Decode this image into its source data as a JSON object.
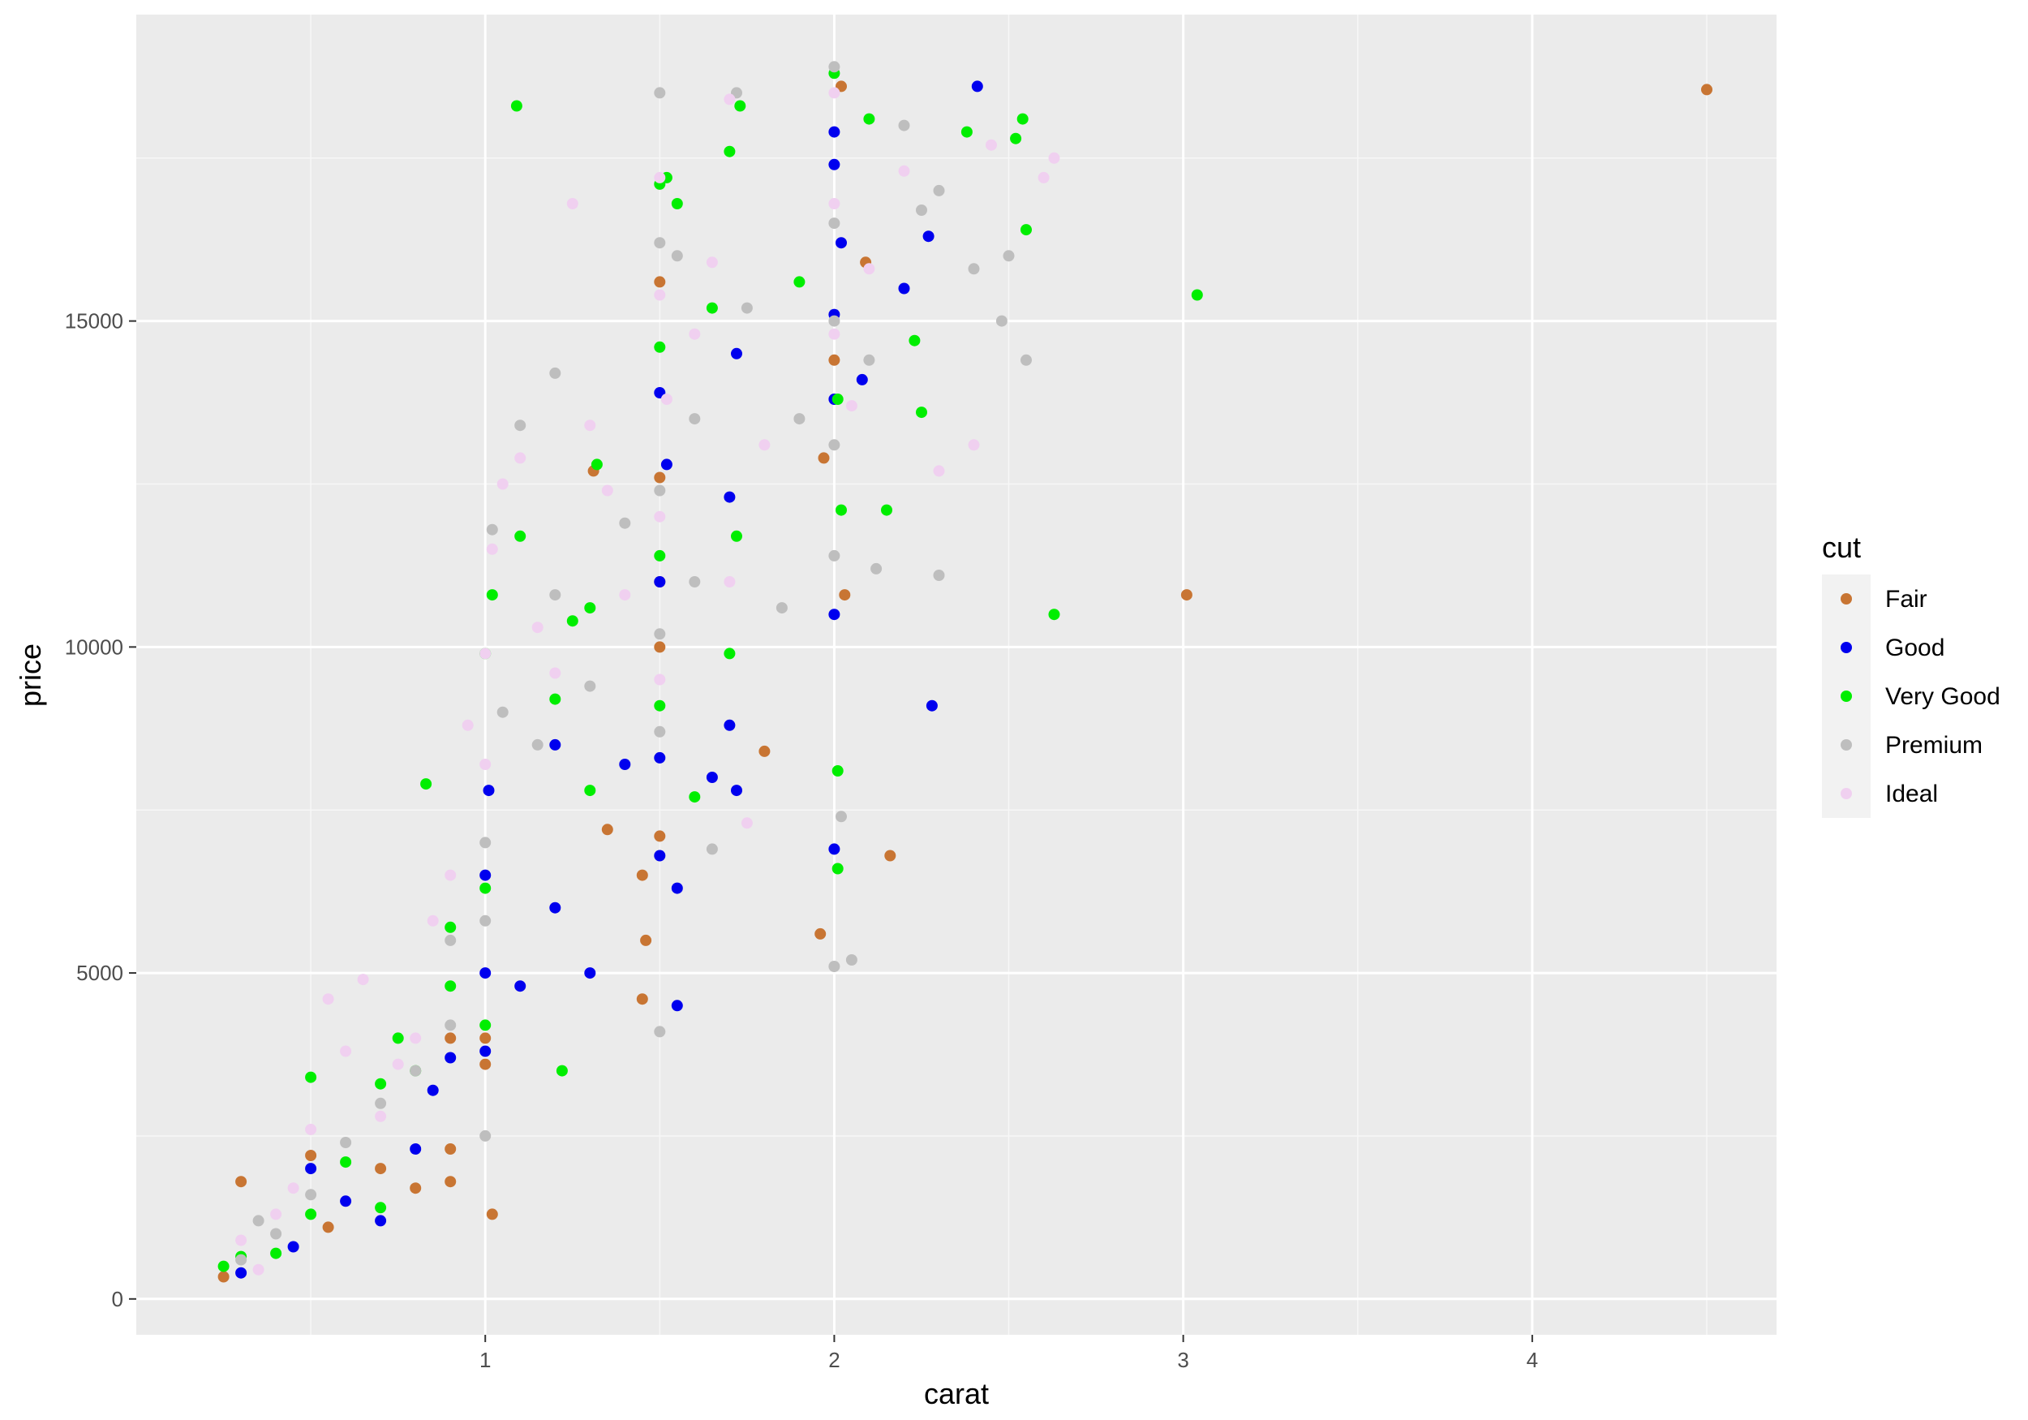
{
  "chart_data": {
    "type": "scatter",
    "title": "",
    "xlabel": "carat",
    "ylabel": "price",
    "xlim": [
      0.0,
      4.7
    ],
    "ylim": [
      -550,
      19700
    ],
    "x_ticks": [
      1,
      2,
      3,
      4
    ],
    "y_ticks": [
      0,
      5000,
      10000,
      15000
    ],
    "grid": true,
    "legend": {
      "title": "cut",
      "position": "right"
    },
    "series": [
      {
        "name": "Fair",
        "color": "#C87533",
        "points": [
          [
            0.3,
            1800
          ],
          [
            0.25,
            340
          ],
          [
            0.5,
            2200
          ],
          [
            0.55,
            1100
          ],
          [
            0.7,
            2000
          ],
          [
            0.8,
            1700
          ],
          [
            0.9,
            1800
          ],
          [
            0.9,
            2300
          ],
          [
            0.9,
            4000
          ],
          [
            1.0,
            4000
          ],
          [
            1.02,
            1300
          ],
          [
            1.0,
            3600
          ],
          [
            1.31,
            12700
          ],
          [
            1.35,
            7200
          ],
          [
            1.45,
            6500
          ],
          [
            1.45,
            4600
          ],
          [
            1.46,
            5500
          ],
          [
            1.5,
            15600
          ],
          [
            1.5,
            12600
          ],
          [
            1.5,
            10000
          ],
          [
            1.5,
            7100
          ],
          [
            1.5,
            11000
          ],
          [
            1.8,
            8400
          ],
          [
            1.96,
            5600
          ],
          [
            1.97,
            12900
          ],
          [
            2.0,
            14400
          ],
          [
            2.02,
            18600
          ],
          [
            2.03,
            10800
          ],
          [
            2.09,
            15900
          ],
          [
            2.16,
            6800
          ],
          [
            3.01,
            10800
          ],
          [
            4.5,
            18550
          ]
        ]
      },
      {
        "name": "Good",
        "color": "#0000EE",
        "points": [
          [
            0.3,
            400
          ],
          [
            0.45,
            800
          ],
          [
            0.5,
            2000
          ],
          [
            0.6,
            1500
          ],
          [
            0.7,
            1200
          ],
          [
            0.8,
            2300
          ],
          [
            0.85,
            3200
          ],
          [
            0.9,
            3700
          ],
          [
            1.0,
            6500
          ],
          [
            1.0,
            5000
          ],
          [
            1.0,
            3800
          ],
          [
            1.01,
            7800
          ],
          [
            1.1,
            4800
          ],
          [
            1.2,
            8500
          ],
          [
            1.2,
            6000
          ],
          [
            1.3,
            5000
          ],
          [
            1.4,
            8200
          ],
          [
            1.5,
            13900
          ],
          [
            1.5,
            11000
          ],
          [
            1.5,
            8300
          ],
          [
            1.5,
            6800
          ],
          [
            1.52,
            12800
          ],
          [
            1.55,
            6300
          ],
          [
            1.55,
            4500
          ],
          [
            1.65,
            8000
          ],
          [
            1.7,
            8800
          ],
          [
            1.72,
            14500
          ],
          [
            1.7,
            12300
          ],
          [
            1.72,
            7800
          ],
          [
            2.0,
            17900
          ],
          [
            2.0,
            17400
          ],
          [
            2.0,
            15100
          ],
          [
            2.0,
            13800
          ],
          [
            2.0,
            10500
          ],
          [
            2.0,
            6900
          ],
          [
            2.02,
            16200
          ],
          [
            2.08,
            14100
          ],
          [
            2.2,
            15500
          ],
          [
            2.27,
            16300
          ],
          [
            2.28,
            9100
          ],
          [
            2.41,
            18600
          ]
        ]
      },
      {
        "name": "Very Good",
        "color": "#00EE00",
        "points": [
          [
            0.25,
            500
          ],
          [
            0.3,
            650
          ],
          [
            0.4,
            700
          ],
          [
            0.5,
            1300
          ],
          [
            0.5,
            3400
          ],
          [
            0.6,
            2100
          ],
          [
            0.7,
            1400
          ],
          [
            0.7,
            3300
          ],
          [
            0.75,
            4000
          ],
          [
            0.8,
            3500
          ],
          [
            0.83,
            7900
          ],
          [
            0.9,
            4800
          ],
          [
            0.9,
            5700
          ],
          [
            1.0,
            9900
          ],
          [
            1.0,
            6300
          ],
          [
            1.0,
            4200
          ],
          [
            1.02,
            10800
          ],
          [
            1.09,
            18300
          ],
          [
            1.1,
            11700
          ],
          [
            1.2,
            9200
          ],
          [
            1.22,
            3500
          ],
          [
            1.25,
            10400
          ],
          [
            1.3,
            10600
          ],
          [
            1.32,
            12800
          ],
          [
            1.3,
            7800
          ],
          [
            1.5,
            17100
          ],
          [
            1.5,
            14600
          ],
          [
            1.5,
            11400
          ],
          [
            1.5,
            9100
          ],
          [
            1.52,
            17200
          ],
          [
            1.55,
            16800
          ],
          [
            1.6,
            7700
          ],
          [
            1.65,
            15200
          ],
          [
            1.7,
            17600
          ],
          [
            1.7,
            9900
          ],
          [
            1.72,
            11700
          ],
          [
            1.73,
            18300
          ],
          [
            1.9,
            15600
          ],
          [
            2.0,
            18800
          ],
          [
            2.01,
            13800
          ],
          [
            2.02,
            12100
          ],
          [
            2.01,
            8100
          ],
          [
            2.01,
            6600
          ],
          [
            2.1,
            18100
          ],
          [
            2.15,
            12100
          ],
          [
            2.23,
            14700
          ],
          [
            2.25,
            13600
          ],
          [
            2.38,
            17900
          ],
          [
            2.52,
            17800
          ],
          [
            2.54,
            18100
          ],
          [
            2.55,
            16400
          ],
          [
            2.63,
            10500
          ],
          [
            3.04,
            15400
          ]
        ]
      },
      {
        "name": "Premium",
        "color": "#BEBEBE",
        "points": [
          [
            0.3,
            600
          ],
          [
            0.35,
            1200
          ],
          [
            0.4,
            1000
          ],
          [
            0.5,
            1600
          ],
          [
            0.6,
            2400
          ],
          [
            0.7,
            3000
          ],
          [
            0.8,
            3500
          ],
          [
            0.9,
            4200
          ],
          [
            0.9,
            5500
          ],
          [
            1.0,
            7000
          ],
          [
            1.0,
            5800
          ],
          [
            1.0,
            2500
          ],
          [
            1.02,
            11800
          ],
          [
            1.05,
            9000
          ],
          [
            1.1,
            13400
          ],
          [
            1.15,
            8500
          ],
          [
            1.2,
            14200
          ],
          [
            1.2,
            10800
          ],
          [
            1.3,
            9400
          ],
          [
            1.4,
            11900
          ],
          [
            1.5,
            18500
          ],
          [
            1.5,
            16200
          ],
          [
            1.5,
            12400
          ],
          [
            1.5,
            10200
          ],
          [
            1.5,
            8700
          ],
          [
            1.5,
            4100
          ],
          [
            1.55,
            16000
          ],
          [
            1.6,
            13500
          ],
          [
            1.6,
            11000
          ],
          [
            1.65,
            6900
          ],
          [
            1.72,
            18500
          ],
          [
            1.75,
            15200
          ],
          [
            1.85,
            10600
          ],
          [
            1.9,
            13500
          ],
          [
            2.0,
            18900
          ],
          [
            2.0,
            16500
          ],
          [
            2.0,
            15000
          ],
          [
            2.0,
            13100
          ],
          [
            2.0,
            11400
          ],
          [
            2.0,
            5100
          ],
          [
            2.02,
            7400
          ],
          [
            2.05,
            5200
          ],
          [
            2.1,
            14400
          ],
          [
            2.12,
            11200
          ],
          [
            2.2,
            18000
          ],
          [
            2.25,
            16700
          ],
          [
            2.3,
            11100
          ],
          [
            2.3,
            17000
          ],
          [
            2.4,
            15800
          ],
          [
            2.48,
            15000
          ],
          [
            2.5,
            16000
          ],
          [
            2.55,
            14400
          ]
        ]
      },
      {
        "name": "Ideal",
        "color": "#F0D0F0",
        "points": [
          [
            0.3,
            900
          ],
          [
            0.35,
            450
          ],
          [
            0.4,
            1300
          ],
          [
            0.45,
            1700
          ],
          [
            0.5,
            2600
          ],
          [
            0.55,
            4600
          ],
          [
            0.6,
            3800
          ],
          [
            0.65,
            4900
          ],
          [
            0.7,
            2800
          ],
          [
            0.75,
            3600
          ],
          [
            0.8,
            4000
          ],
          [
            0.85,
            5800
          ],
          [
            0.9,
            6500
          ],
          [
            0.95,
            8800
          ],
          [
            1.0,
            9900
          ],
          [
            1.0,
            8200
          ],
          [
            1.02,
            11500
          ],
          [
            1.05,
            12500
          ],
          [
            1.1,
            12900
          ],
          [
            1.15,
            10300
          ],
          [
            1.2,
            9600
          ],
          [
            1.25,
            16800
          ],
          [
            1.3,
            13400
          ],
          [
            1.35,
            12400
          ],
          [
            1.4,
            10800
          ],
          [
            1.5,
            17200
          ],
          [
            1.5,
            15400
          ],
          [
            1.5,
            12000
          ],
          [
            1.5,
            9500
          ],
          [
            1.52,
            13800
          ],
          [
            1.6,
            14800
          ],
          [
            1.65,
            15900
          ],
          [
            1.7,
            18400
          ],
          [
            1.7,
            11000
          ],
          [
            1.75,
            7300
          ],
          [
            1.8,
            13100
          ],
          [
            2.0,
            18500
          ],
          [
            2.0,
            16800
          ],
          [
            2.0,
            14800
          ],
          [
            2.05,
            13700
          ],
          [
            2.1,
            15800
          ],
          [
            2.2,
            17300
          ],
          [
            2.3,
            12700
          ],
          [
            2.4,
            13100
          ],
          [
            2.45,
            17700
          ],
          [
            2.6,
            17200
          ],
          [
            2.63,
            17500
          ]
        ]
      }
    ]
  }
}
